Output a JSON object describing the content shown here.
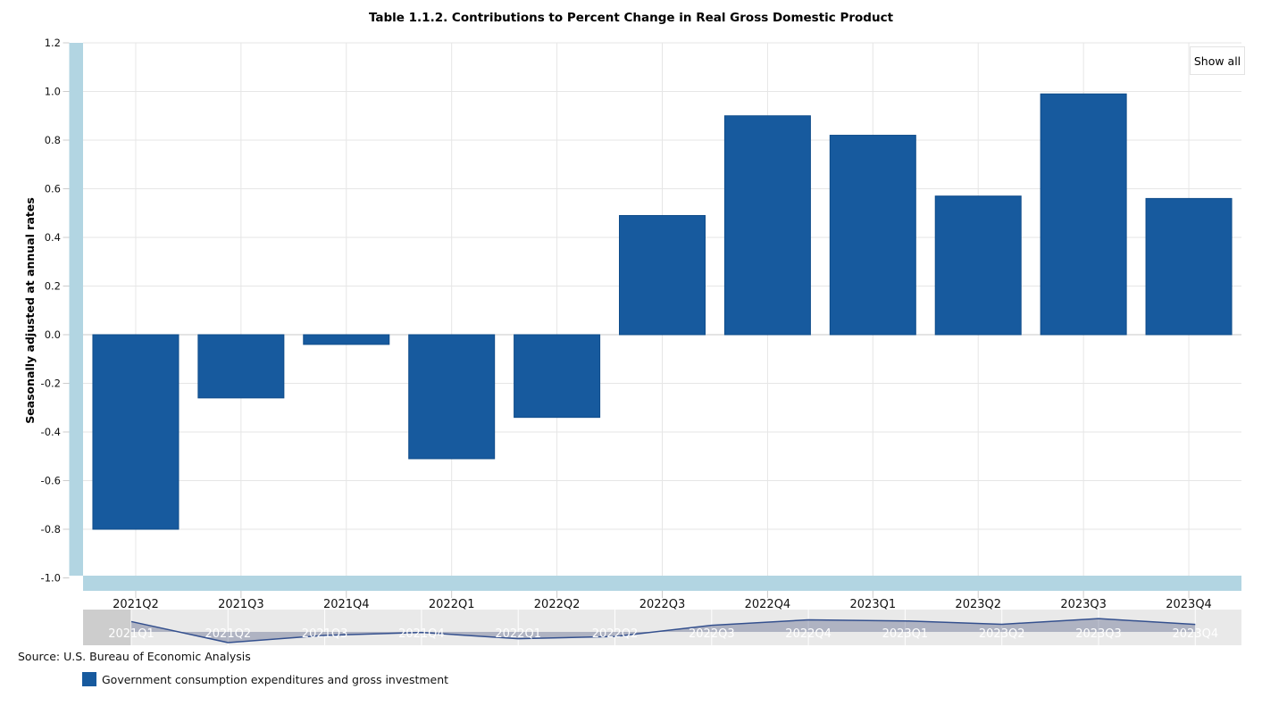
{
  "header": {
    "show_all_label": "Show all"
  },
  "footer": {
    "source": "Source: U.S. Bureau of Economic Analysis"
  },
  "legend": {
    "label": "Government consumption expenditures and gross investment"
  },
  "colors": {
    "bar": "#175a9e",
    "bar_border": "#0f4c8a",
    "scrollbar": "#b2d5e2",
    "grid": "#e6e6e6",
    "zero_line": "#c8c8c8",
    "tick": "#cccccc",
    "nav_bg": "#e9e9e9",
    "nav_mask": "#cdcdcd",
    "nav_line": "#34508e",
    "nav_fill": "rgba(95,105,140,0.42)",
    "nav_label": "#ffffff",
    "text": "#111111"
  },
  "chart_data": {
    "type": "bar",
    "title": "Table 1.1.2. Contributions to Percent Change in Real Gross Domestic Product",
    "xlabel": "",
    "ylabel": "Seasonally adjusted at annual rates",
    "ylim": [
      -1.0,
      1.2
    ],
    "y_tick_step": 0.2,
    "grid": true,
    "legend_position": "bottom-left",
    "categories": [
      "2021Q2",
      "2021Q3",
      "2021Q4",
      "2022Q1",
      "2022Q2",
      "2022Q3",
      "2022Q4",
      "2023Q1",
      "2023Q2",
      "2023Q3",
      "2023Q4"
    ],
    "series": [
      {
        "name": "Government consumption expenditures and gross investment",
        "values": [
          -0.8,
          -0.26,
          -0.04,
          -0.51,
          -0.34,
          0.49,
          0.9,
          0.82,
          0.57,
          0.99,
          0.56
        ]
      }
    ],
    "navigator": {
      "categories": [
        "2021Q1",
        "2021Q2",
        "2021Q3",
        "2021Q4",
        "2022Q1",
        "2022Q2",
        "2022Q3",
        "2022Q4",
        "2023Q1",
        "2023Q2",
        "2023Q3",
        "2023Q4"
      ],
      "values": [
        0.77,
        -0.8,
        -0.26,
        -0.04,
        -0.51,
        -0.34,
        0.49,
        0.9,
        0.82,
        0.57,
        0.99,
        0.56
      ],
      "visible_range_start": "2021Q2",
      "visible_range_end": "2023Q4"
    }
  }
}
